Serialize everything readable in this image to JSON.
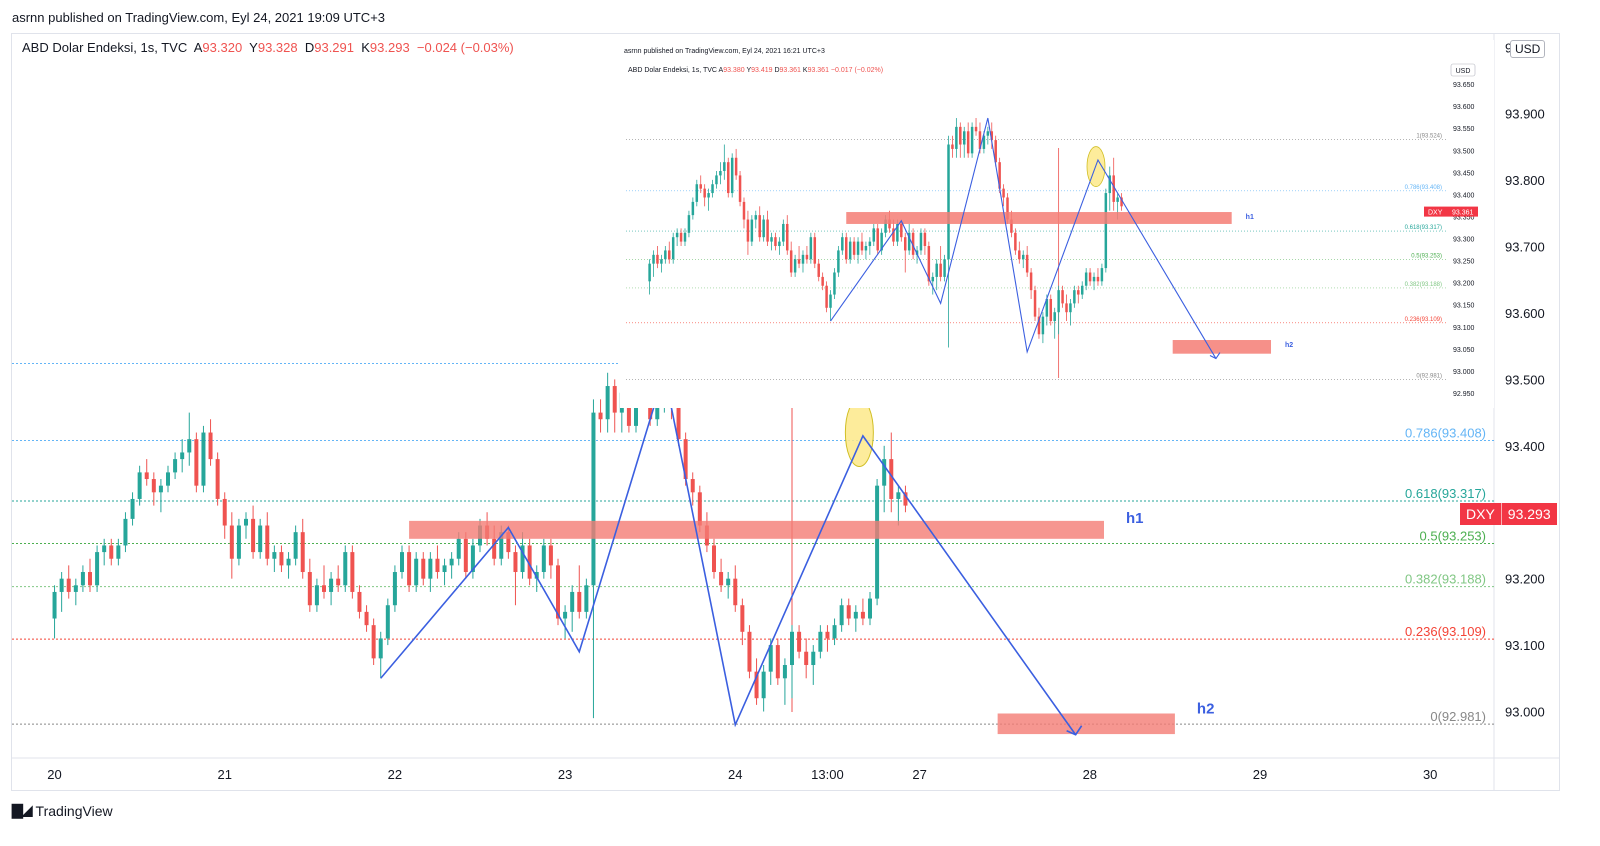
{
  "publish_line": "asrnn published on TradingView.com, Eyl 24, 2021 19:09 UTC+3",
  "header": {
    "symbol": "ABD Dolar Endeksi, 1s, TVC",
    "open_label": "A",
    "open": "93.320",
    "high_label": "Y",
    "high": "93.328",
    "low_label": "D",
    "low": "93.291",
    "close_label": "K",
    "close": "93.293",
    "change": "−0.024 (−0.03%)"
  },
  "currency": "USD",
  "price_tag": {
    "symbol": "DXY",
    "value": "93.293"
  },
  "brand": "TradingView",
  "colors": {
    "up": "#26a69a",
    "down": "#ef5350",
    "zigzag": "#3b5fe0",
    "zone": "#f47c74",
    "highlight": "#fde98a"
  },
  "chart_data": {
    "type": "candlestick",
    "timeframe": "1s",
    "y_axis": {
      "ticks": [
        "94.000",
        "93.900",
        "93.800",
        "93.700",
        "93.600",
        "93.500",
        "93.400",
        "93.300",
        "93.200",
        "93.100",
        "93.000"
      ],
      "range": [
        92.93,
        94.02
      ]
    },
    "x_axis": {
      "ticks": [
        {
          "label": "20",
          "t": 0
        },
        {
          "label": "21",
          "t": 24
        },
        {
          "label": "22",
          "t": 48
        },
        {
          "label": "23",
          "t": 72
        },
        {
          "label": "24",
          "t": 96
        },
        {
          "label": "13:00",
          "t": 109
        },
        {
          "label": "27",
          "t": 122
        },
        {
          "label": "28",
          "t": 146
        },
        {
          "label": "29",
          "t": 170
        },
        {
          "label": "30",
          "t": 194
        }
      ],
      "range": [
        -6,
        203
      ]
    },
    "fibonacci": [
      {
        "label": "0.786(93.408)",
        "value": 93.408,
        "color": "#64b5f6"
      },
      {
        "label": "0.618(93.317)",
        "value": 93.317,
        "color": "#26a69a"
      },
      {
        "label": "0.5(93.253)",
        "value": 93.253,
        "color": "#4caf50"
      },
      {
        "label": "0.382(93.188)",
        "value": 93.188,
        "color": "#81c784"
      },
      {
        "label": "0.236(93.109)",
        "value": 93.109,
        "color": "#f44336"
      },
      {
        "label": "0(92.981)",
        "value": 92.981,
        "color": "#888888"
      }
    ],
    "level_1_value": 93.524,
    "zones": [
      {
        "label": "h1",
        "t_start": 50,
        "t_end": 148,
        "y_top": 93.287,
        "y_bottom": 93.26
      },
      {
        "label": "h2",
        "t_start": 133,
        "t_end": 158,
        "y_top": 92.997,
        "y_bottom": 92.966
      }
    ],
    "zigzag": [
      [
        46,
        93.05
      ],
      [
        64,
        93.277
      ],
      [
        74,
        93.09
      ],
      [
        86,
        93.51
      ],
      [
        96,
        92.98
      ],
      [
        114,
        93.415
      ],
      [
        144,
        92.965
      ]
    ],
    "highlight": {
      "t": 113.5,
      "price": 93.42
    },
    "vertical_marker_t": 104,
    "candles": [
      [
        0,
        93.14,
        93.19,
        93.11,
        93.18
      ],
      [
        1,
        93.18,
        93.21,
        93.15,
        93.2
      ],
      [
        2,
        93.2,
        93.22,
        93.17,
        93.18
      ],
      [
        3,
        93.18,
        93.2,
        93.16,
        93.19
      ],
      [
        4,
        93.19,
        93.22,
        93.18,
        93.21
      ],
      [
        5,
        93.21,
        93.23,
        93.18,
        93.19
      ],
      [
        6,
        93.19,
        93.25,
        93.18,
        93.24
      ],
      [
        7,
        93.24,
        93.26,
        93.22,
        93.25
      ],
      [
        8,
        93.25,
        93.26,
        93.22,
        93.23
      ],
      [
        9,
        93.23,
        93.26,
        93.22,
        93.25
      ],
      [
        10,
        93.25,
        93.3,
        93.24,
        93.29
      ],
      [
        11,
        93.29,
        93.33,
        93.28,
        93.32
      ],
      [
        12,
        93.32,
        93.37,
        93.31,
        93.36
      ],
      [
        13,
        93.36,
        93.38,
        93.34,
        93.35
      ],
      [
        14,
        93.35,
        93.36,
        93.31,
        93.33
      ],
      [
        15,
        93.33,
        93.35,
        93.3,
        93.34
      ],
      [
        16,
        93.34,
        93.37,
        93.33,
        93.36
      ],
      [
        17,
        93.36,
        93.39,
        93.35,
        93.38
      ],
      [
        18,
        93.38,
        93.41,
        93.36,
        93.39
      ],
      [
        19,
        93.39,
        93.45,
        93.37,
        93.41
      ],
      [
        20,
        93.41,
        93.42,
        93.33,
        93.34
      ],
      [
        21,
        93.34,
        93.43,
        93.33,
        93.42
      ],
      [
        22,
        93.42,
        93.44,
        93.37,
        93.38
      ],
      [
        23,
        93.38,
        93.39,
        93.31,
        93.32
      ],
      [
        24,
        93.32,
        93.33,
        93.26,
        93.28
      ],
      [
        25,
        93.28,
        93.3,
        93.2,
        93.23
      ],
      [
        26,
        93.23,
        93.29,
        93.22,
        93.28
      ],
      [
        27,
        93.28,
        93.3,
        93.26,
        93.29
      ],
      [
        28,
        93.29,
        93.31,
        93.23,
        93.24
      ],
      [
        29,
        93.24,
        93.29,
        93.23,
        93.28
      ],
      [
        30,
        93.28,
        93.3,
        93.22,
        93.23
      ],
      [
        31,
        93.23,
        93.25,
        93.21,
        93.24
      ],
      [
        32,
        93.24,
        93.25,
        93.21,
        93.22
      ],
      [
        33,
        93.22,
        93.24,
        93.2,
        93.23
      ],
      [
        34,
        93.23,
        93.28,
        93.22,
        93.27
      ],
      [
        35,
        93.27,
        93.29,
        93.2,
        93.21
      ],
      [
        36,
        93.21,
        93.23,
        93.15,
        93.16
      ],
      [
        37,
        93.16,
        93.2,
        93.15,
        93.19
      ],
      [
        38,
        93.19,
        93.22,
        93.17,
        93.18
      ],
      [
        39,
        93.18,
        93.21,
        93.16,
        93.2
      ],
      [
        40,
        93.2,
        93.22,
        93.18,
        93.19
      ],
      [
        41,
        93.19,
        93.25,
        93.18,
        93.24
      ],
      [
        42,
        93.24,
        93.25,
        93.17,
        93.18
      ],
      [
        43,
        93.18,
        93.19,
        93.14,
        93.15
      ],
      [
        44,
        93.15,
        93.16,
        93.12,
        93.13
      ],
      [
        45,
        93.13,
        93.14,
        93.07,
        93.08
      ],
      [
        46,
        93.08,
        93.12,
        93.05,
        93.11
      ],
      [
        47,
        93.11,
        93.17,
        93.1,
        93.16
      ],
      [
        48,
        93.16,
        93.22,
        93.15,
        93.21
      ],
      [
        49,
        93.21,
        93.25,
        93.2,
        93.24
      ],
      [
        50,
        93.24,
        93.25,
        93.18,
        93.19
      ],
      [
        51,
        93.19,
        93.24,
        93.18,
        93.23
      ],
      [
        52,
        93.23,
        93.24,
        93.19,
        93.2
      ],
      [
        53,
        93.2,
        93.24,
        93.18,
        93.23
      ],
      [
        54,
        93.23,
        93.25,
        93.2,
        93.21
      ],
      [
        55,
        93.21,
        93.23,
        93.19,
        93.22
      ],
      [
        56,
        93.22,
        93.24,
        93.2,
        93.23
      ],
      [
        57,
        93.23,
        93.27,
        93.22,
        93.26
      ],
      [
        58,
        93.26,
        93.27,
        93.2,
        93.21
      ],
      [
        59,
        93.21,
        93.26,
        93.2,
        93.25
      ],
      [
        60,
        93.25,
        93.29,
        93.24,
        93.28
      ],
      [
        61,
        93.28,
        93.3,
        93.25,
        93.26
      ],
      [
        62,
        93.26,
        93.28,
        93.22,
        93.23
      ],
      [
        63,
        93.23,
        93.28,
        93.22,
        93.27
      ],
      [
        64,
        93.27,
        93.28,
        93.23,
        93.24
      ],
      [
        65,
        93.24,
        93.25,
        93.16,
        93.21
      ],
      [
        66,
        93.21,
        93.27,
        93.2,
        93.25
      ],
      [
        67,
        93.25,
        93.26,
        93.19,
        93.2
      ],
      [
        68,
        93.2,
        93.22,
        93.18,
        93.21
      ],
      [
        69,
        93.21,
        93.26,
        93.2,
        93.25
      ],
      [
        70,
        93.25,
        93.26,
        93.2,
        93.22
      ],
      [
        71,
        93.22,
        93.23,
        93.13,
        93.14
      ],
      [
        72,
        93.14,
        93.16,
        93.11,
        93.15
      ],
      [
        73,
        93.15,
        93.19,
        93.12,
        93.18
      ],
      [
        74,
        93.18,
        93.22,
        93.14,
        93.15
      ],
      [
        75,
        93.15,
        93.2,
        93.14,
        93.19
      ],
      [
        76,
        93.19,
        93.47,
        92.99,
        93.45
      ],
      [
        77,
        93.45,
        93.47,
        93.42,
        93.44
      ],
      [
        78,
        93.44,
        93.51,
        93.42,
        93.49
      ],
      [
        79,
        93.49,
        93.5,
        93.42,
        93.45
      ],
      [
        80,
        93.45,
        93.49,
        93.42,
        93.48
      ],
      [
        81,
        93.48,
        93.5,
        93.42,
        93.43
      ],
      [
        82,
        93.43,
        93.5,
        93.42,
        93.49
      ],
      [
        83,
        93.49,
        93.51,
        93.47,
        93.48
      ],
      [
        84,
        93.48,
        93.5,
        93.43,
        93.44
      ],
      [
        85,
        93.44,
        93.48,
        93.43,
        93.47
      ],
      [
        86,
        93.47,
        93.49,
        93.45,
        93.48
      ],
      [
        87,
        93.48,
        93.5,
        93.44,
        93.46
      ],
      [
        88,
        93.46,
        93.47,
        93.4,
        93.41
      ],
      [
        89,
        93.41,
        93.42,
        93.34,
        93.35
      ],
      [
        90,
        93.35,
        93.36,
        93.31,
        93.33
      ],
      [
        91,
        93.33,
        93.34,
        93.27,
        93.28
      ],
      [
        92,
        93.28,
        93.3,
        93.24,
        93.25
      ],
      [
        93,
        93.25,
        93.26,
        93.2,
        93.21
      ],
      [
        94,
        93.21,
        93.23,
        93.18,
        93.19
      ],
      [
        95,
        93.19,
        93.21,
        93.17,
        93.2
      ],
      [
        96,
        93.2,
        93.22,
        93.15,
        93.16
      ],
      [
        97,
        93.16,
        93.17,
        93.1,
        93.12
      ],
      [
        98,
        93.12,
        93.13,
        93.05,
        93.06
      ],
      [
        99,
        93.06,
        93.08,
        93.01,
        93.02
      ],
      [
        100,
        93.02,
        93.07,
        93.0,
        93.06
      ],
      [
        101,
        93.06,
        93.11,
        93.04,
        93.1
      ],
      [
        102,
        93.1,
        93.11,
        93.04,
        93.05
      ],
      [
        103,
        93.05,
        93.08,
        93.01,
        93.07
      ],
      [
        104,
        93.07,
        93.13,
        93.02,
        93.12
      ],
      [
        105,
        93.12,
        93.13,
        93.08,
        93.09
      ],
      [
        106,
        93.09,
        93.11,
        93.05,
        93.07
      ],
      [
        107,
        93.07,
        93.1,
        93.04,
        93.09
      ],
      [
        108,
        93.09,
        93.13,
        93.08,
        93.12
      ],
      [
        109,
        93.12,
        93.13,
        93.09,
        93.11
      ],
      [
        110,
        93.11,
        93.14,
        93.1,
        93.13
      ],
      [
        111,
        93.13,
        93.17,
        93.12,
        93.16
      ],
      [
        112,
        93.16,
        93.17,
        93.13,
        93.14
      ],
      [
        113,
        93.14,
        93.16,
        93.12,
        93.15
      ],
      [
        114,
        93.15,
        93.17,
        93.13,
        93.14
      ],
      [
        115,
        93.14,
        93.18,
        93.13,
        93.17
      ],
      [
        116,
        93.17,
        93.35,
        93.16,
        93.34
      ],
      [
        117,
        93.34,
        93.4,
        93.3,
        93.38
      ],
      [
        118,
        93.38,
        93.42,
        93.3,
        93.32
      ],
      [
        119,
        93.32,
        93.34,
        93.28,
        93.33
      ],
      [
        120,
        93.33,
        93.34,
        93.3,
        93.31
      ]
    ]
  },
  "inset": {
    "publish_line": "asrnn published on TradingView.com, Eyl 24, 2021 16:21 UTC+3",
    "symbol": "ABD Dolar Endeksi, 1s, TVC",
    "open_label": "A",
    "open": "93.380",
    "high_label": "Y",
    "high": "93.419",
    "low_label": "D",
    "low": "93.361",
    "close_label": "K",
    "close": "93.361",
    "change": "−0.017 (−0.02%)",
    "currency": "USD",
    "price_tag_symbol": "DXY",
    "price_tag_value": "93.361",
    "y_ticks": [
      "93.650",
      "93.600",
      "93.550",
      "93.500",
      "93.450",
      "93.400",
      "93.350",
      "93.300",
      "93.250",
      "93.200",
      "93.150",
      "93.100",
      "93.050",
      "93.000",
      "92.950"
    ],
    "y_range": [
      92.925,
      93.7
    ],
    "fib_labels": [
      "1(93.524)",
      "0.786(93.408)",
      "0.618(93.317)",
      "0.5(93.253)",
      "0.382(93.188)",
      "0.236(93.109)",
      "0(92.981)"
    ],
    "zone_labels": [
      "h1",
      "h2"
    ]
  }
}
